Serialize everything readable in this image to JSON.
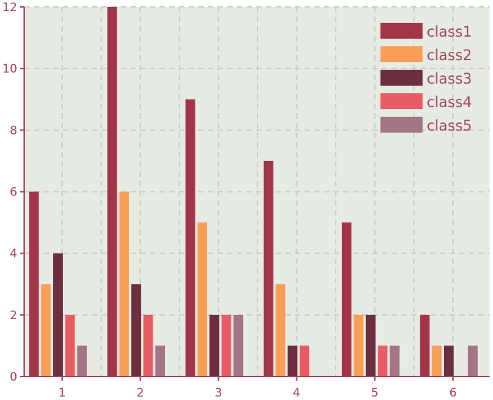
{
  "chart_data": {
    "type": "bar",
    "title": "",
    "xlabel": "",
    "ylabel": "",
    "categories": [
      "1",
      "2",
      "3",
      "4",
      "5",
      "6"
    ],
    "ylim": [
      0,
      12
    ],
    "yticks": [
      "0",
      "2",
      "4",
      "6",
      "8",
      "10",
      "12"
    ],
    "grid": true,
    "legend_position": "top-right",
    "series": [
      {
        "name": "class1",
        "color": "#a33549",
        "values": [
          6,
          12,
          9,
          7,
          5,
          2
        ]
      },
      {
        "name": "class2",
        "color": "#f99e56",
        "values": [
          3,
          6,
          5,
          3,
          2,
          1
        ]
      },
      {
        "name": "class3",
        "color": "#6c2f3f",
        "values": [
          4,
          3,
          2,
          1,
          2,
          1
        ]
      },
      {
        "name": "class4",
        "color": "#ea5c63",
        "values": [
          2,
          2,
          2,
          1,
          1,
          0
        ]
      },
      {
        "name": "class5",
        "color": "#a37585",
        "values": [
          1,
          1,
          2,
          0,
          1,
          1
        ]
      }
    ],
    "colors": {
      "plot_background": "#e6ebe4",
      "grid": "#cfcdc6",
      "axis": "#a5465a",
      "text": "#a5465a"
    }
  }
}
